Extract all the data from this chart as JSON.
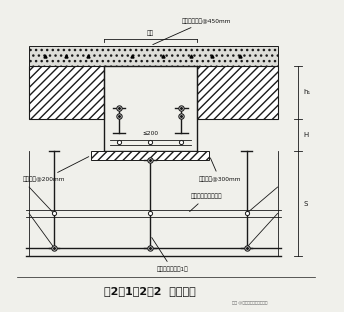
{
  "title": "图2．1．2．2  梁安装图",
  "subtitle": "注点 @施工艺术绑筋花花提师",
  "bg_color": "#f0f0eb",
  "line_color": "#1a1a1a",
  "annotations": {
    "top_label": "对拉螺杆水平@450mm",
    "beam_label": "梁宽",
    "left_bottom_label": "梁底铺钢@200mm",
    "right_bottom_label": "梁侧背钢@300mm",
    "center_label": "≤200",
    "stirrup_label": "梁底立杆间距：加密",
    "base_label": "梁底附加立杆：1排"
  },
  "dim_labels": [
    "h₁",
    "H",
    "S"
  ],
  "figsize": [
    3.44,
    3.12
  ],
  "dpi": 100
}
